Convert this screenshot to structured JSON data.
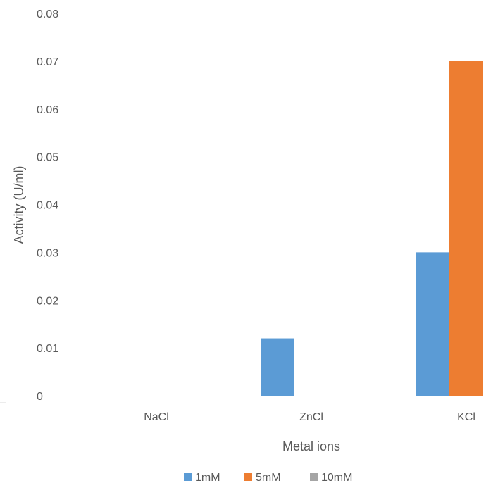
{
  "chart_data": {
    "type": "bar",
    "title": "",
    "xlabel": "Metal ions",
    "ylabel": "Activity (U/ml)",
    "categories": [
      "NaCl",
      "ZnCl",
      "KCl"
    ],
    "series": [
      {
        "name": "1mM",
        "color": "#5B9BD5",
        "values": [
          0,
          0.012,
          0.03
        ]
      },
      {
        "name": "5mM",
        "color": "#ED7D31",
        "values": [
          0,
          0,
          0.07
        ]
      },
      {
        "name": "10mM",
        "color": "#A5A5A5",
        "values": [
          0,
          0,
          0
        ]
      }
    ],
    "ylim": [
      0,
      0.08
    ],
    "yticks": [
      "0",
      "0.01",
      "0.02",
      "0.03",
      "0.04",
      "0.05",
      "0.06",
      "0.07",
      "0.08"
    ],
    "grid": false,
    "legend_position": "bottom"
  }
}
